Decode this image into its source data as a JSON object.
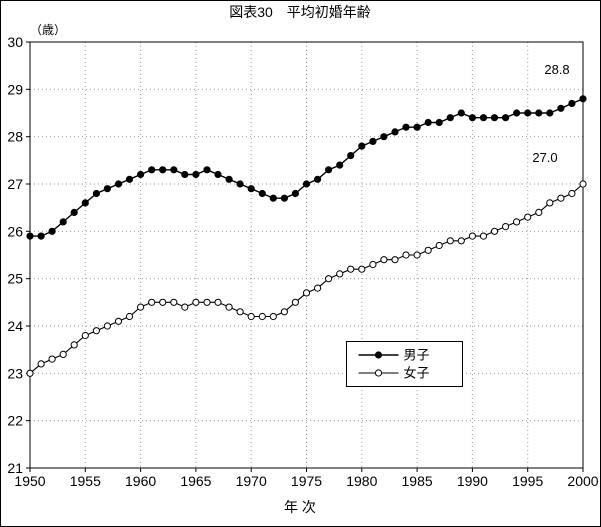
{
  "chart_data": {
    "type": "line",
    "title": "図表30　平均初婚年齢",
    "ylabel": "（歳）",
    "xlabel": "年 次",
    "ylim": [
      21,
      30
    ],
    "xlim": [
      1950,
      2000
    ],
    "y_tick_step": 1,
    "x_tick_step": 5,
    "grid": true,
    "legend_position": "lower-center-box",
    "colors": {
      "line": "#000000",
      "marker_fill_men": "#000000",
      "marker_fill_women": "#ffffff",
      "grid": "#999999",
      "background": "#ffffff"
    },
    "series": [
      {
        "name": "男子",
        "marker": "filled-circle",
        "values": [
          25.9,
          25.9,
          26.0,
          26.2,
          26.4,
          26.6,
          26.8,
          26.9,
          27.0,
          27.1,
          27.2,
          27.3,
          27.3,
          27.3,
          27.2,
          27.2,
          27.3,
          27.2,
          27.1,
          27.0,
          26.9,
          26.8,
          26.7,
          26.7,
          26.8,
          27.0,
          27.1,
          27.3,
          27.4,
          27.6,
          27.8,
          27.9,
          28.0,
          28.1,
          28.2,
          28.2,
          28.3,
          28.3,
          28.4,
          28.5,
          28.4,
          28.4,
          28.4,
          28.4,
          28.5,
          28.5,
          28.5,
          28.5,
          28.6,
          28.7,
          28.8
        ]
      },
      {
        "name": "女子",
        "marker": "open-circle",
        "values": [
          23.0,
          23.2,
          23.3,
          23.4,
          23.6,
          23.8,
          23.9,
          24.0,
          24.1,
          24.2,
          24.4,
          24.5,
          24.5,
          24.5,
          24.4,
          24.5,
          24.5,
          24.5,
          24.4,
          24.3,
          24.2,
          24.2,
          24.2,
          24.3,
          24.5,
          24.7,
          24.8,
          25.0,
          25.1,
          25.2,
          25.2,
          25.3,
          25.4,
          25.4,
          25.5,
          25.5,
          25.6,
          25.7,
          25.8,
          25.8,
          25.9,
          25.9,
          26.0,
          26.1,
          26.2,
          26.3,
          26.4,
          26.6,
          26.7,
          26.8,
          27.0
        ]
      }
    ],
    "x_tick_labels": [
      "1950",
      "1955",
      "1960",
      "1965",
      "1970",
      "1975",
      "1980",
      "1985",
      "1990",
      "1995",
      "2000"
    ],
    "y_tick_labels": [
      "30",
      "29",
      "28",
      "27",
      "26",
      "25",
      "24",
      "23",
      "22",
      "21"
    ],
    "annotations": [
      {
        "text": "28.8",
        "series_index": 0
      },
      {
        "text": "27.0",
        "series_index": 1
      }
    ],
    "legend_labels": [
      "男子",
      "女子"
    ]
  }
}
